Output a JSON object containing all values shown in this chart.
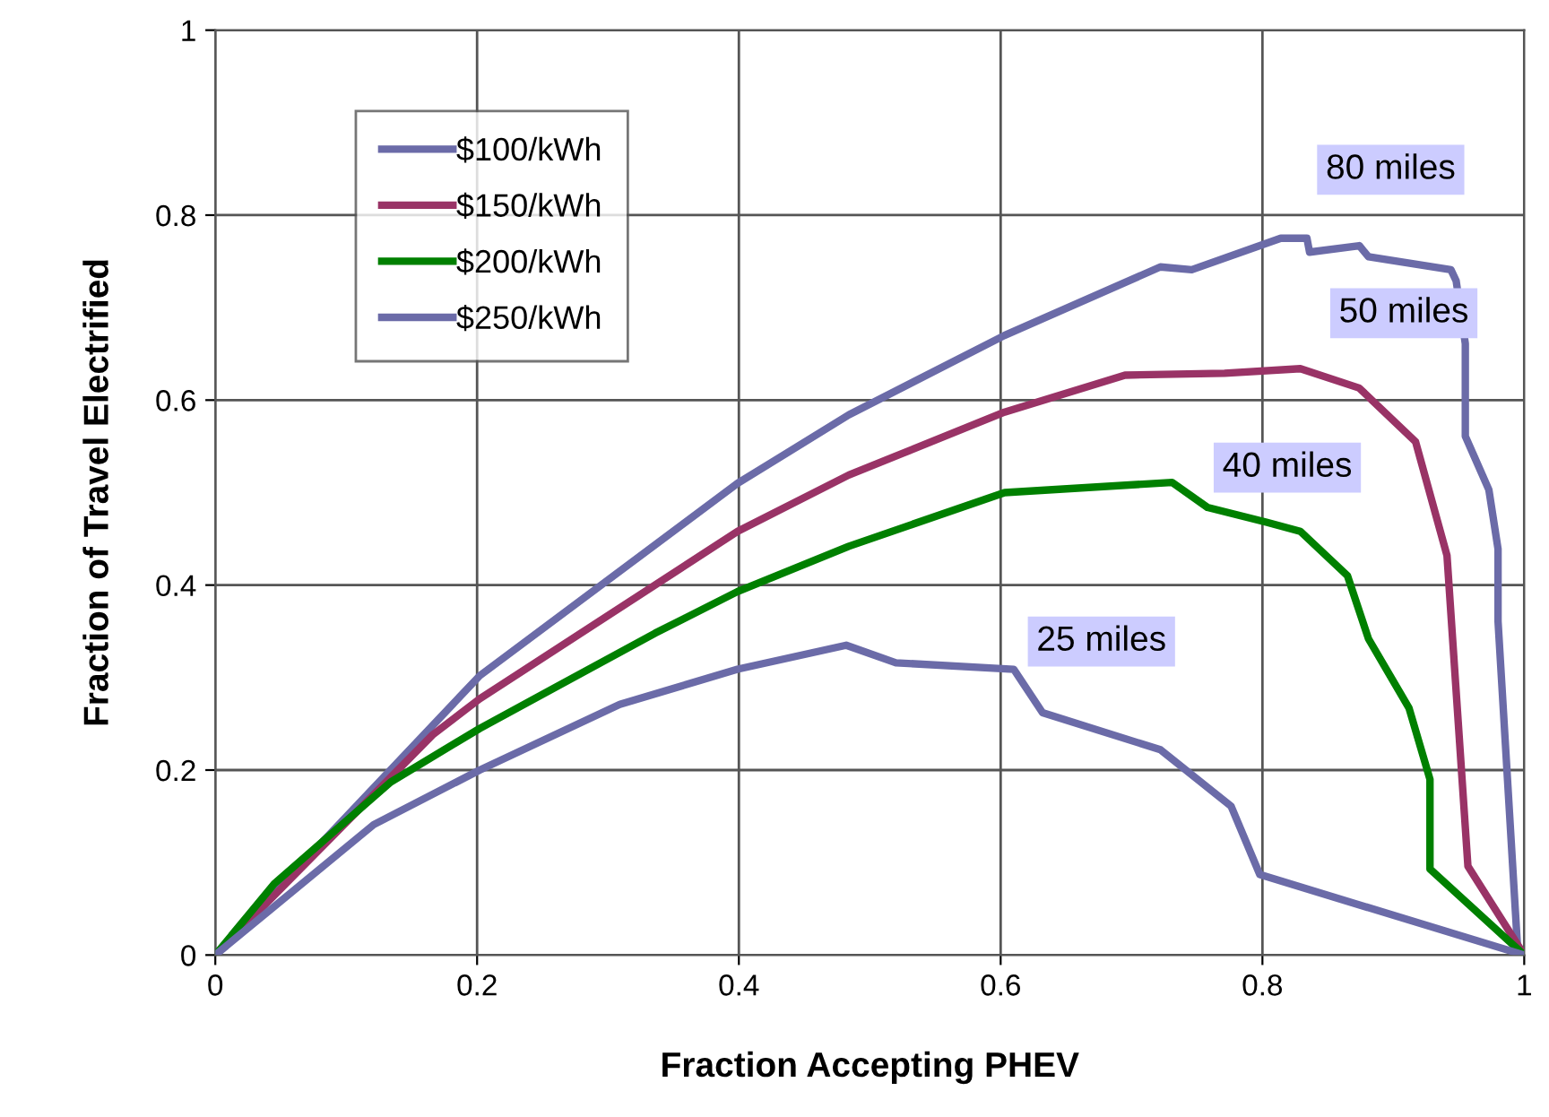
{
  "chart_data": {
    "type": "line",
    "xlabel": "Fraction Accepting PHEV",
    "ylabel": "Fraction of Travel Electrified",
    "xlim": [
      0,
      1
    ],
    "ylim": [
      0,
      1
    ],
    "xticks": [
      0,
      0.2,
      0.4,
      0.6,
      0.8,
      1
    ],
    "yticks": [
      0,
      0.2,
      0.4,
      0.6,
      0.8,
      1
    ],
    "grid": true,
    "legend": "top left",
    "marker": "none",
    "line_style": "solid",
    "series": [
      {
        "name": "$100/kWh",
        "color": "#6b6ba8",
        "x": [
          0,
          0.202,
          0.399,
          0.484,
          0.603,
          0.722,
          0.746,
          0.814,
          0.834,
          0.836,
          0.874,
          0.881,
          0.944,
          0.948,
          0.955,
          0.955,
          0.973,
          0.98,
          0.98,
          0.995,
          1
        ],
        "values": [
          0,
          0.302,
          0.51,
          0.584,
          0.67,
          0.744,
          0.741,
          0.775,
          0.775,
          0.76,
          0.767,
          0.755,
          0.741,
          0.729,
          0.661,
          0.561,
          0.503,
          0.439,
          0.361,
          0.006,
          0
        ]
      },
      {
        "name": "$150/kWh",
        "color": "#993366",
        "x": [
          0,
          0.166,
          0.202,
          0.399,
          0.484,
          0.603,
          0.695,
          0.771,
          0.829,
          0.874,
          0.917,
          0.941,
          0.957,
          1
        ],
        "values": [
          0,
          0.238,
          0.277,
          0.458,
          0.519,
          0.587,
          0.627,
          0.629,
          0.634,
          0.613,
          0.555,
          0.432,
          0.096,
          0
        ]
      },
      {
        "name": "$200/kWh",
        "color": "#008000",
        "x": [
          0,
          0.045,
          0.134,
          0.202,
          0.336,
          0.399,
          0.484,
          0.603,
          0.731,
          0.758,
          0.803,
          0.829,
          0.865,
          0.881,
          0.912,
          0.928,
          0.928,
          1
        ],
        "values": [
          0,
          0.077,
          0.187,
          0.245,
          0.348,
          0.393,
          0.442,
          0.5,
          0.511,
          0.484,
          0.468,
          0.458,
          0.41,
          0.342,
          0.267,
          0.19,
          0.093,
          0
        ]
      },
      {
        "name": "$250/kWh",
        "color": "#6b6ba8",
        "x": [
          0,
          0.121,
          0.202,
          0.309,
          0.399,
          0.482,
          0.52,
          0.61,
          0.632,
          0.722,
          0.776,
          0.798,
          1
        ],
        "values": [
          0,
          0.141,
          0.2,
          0.271,
          0.309,
          0.335,
          0.316,
          0.309,
          0.262,
          0.222,
          0.161,
          0.087,
          0
        ]
      }
    ],
    "annotations": [
      "80 miles",
      "50 miles",
      "40 miles",
      "25 miles"
    ]
  }
}
